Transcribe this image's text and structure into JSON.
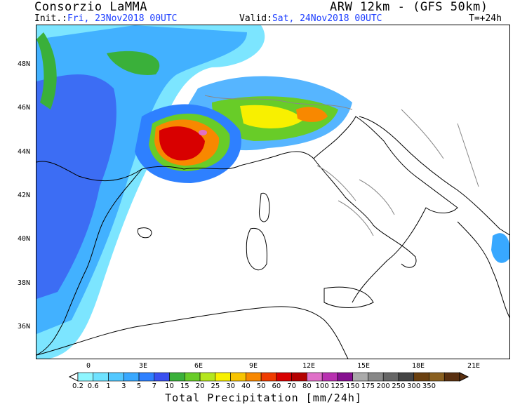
{
  "header": {
    "source": "Consorzio LaMMA",
    "model": "ARW 12km - (GFS 50km)",
    "init_label": "Init.:",
    "init_value": "Fri, 23Nov2018 00UTC",
    "valid_label": "Valid:",
    "valid_value": "Sat, 24Nov2018 00UTC",
    "forecast_step": "T=+24h"
  },
  "map": {
    "lat_labels": [
      "48N",
      "46N",
      "44N",
      "42N",
      "40N",
      "38N",
      "36N"
    ],
    "lon_labels": [
      "0",
      "3E",
      "6E",
      "9E",
      "12E",
      "15E",
      "18E",
      "21E"
    ]
  },
  "legend": {
    "title": "Total Precipitation [mm/24h]",
    "levels": [
      "0.2",
      "0.6",
      "1",
      "3",
      "5",
      "7",
      "10",
      "15",
      "20",
      "25",
      "30",
      "40",
      "50",
      "60",
      "70",
      "80",
      "100",
      "125",
      "150",
      "175",
      "200",
      "250",
      "300",
      "350"
    ],
    "colors": [
      "#8ef6ff",
      "#6ee2ff",
      "#52c8ff",
      "#38a8ff",
      "#2e80ff",
      "#3a50f0",
      "#3ab03a",
      "#68cc28",
      "#b4e61e",
      "#f8f000",
      "#f8c400",
      "#f88800",
      "#f03c00",
      "#d80000",
      "#b40000",
      "#e070c8",
      "#b830b0",
      "#861090",
      "#aaaaaa",
      "#888888",
      "#666666",
      "#444444",
      "#6a4010",
      "#8a6020",
      "#5a3010"
    ],
    "colors_note": "color classes between consecutive levels"
  },
  "colors": {
    "coastline": "#000000",
    "border": "#888888",
    "label_blue": "#1a3cff"
  }
}
